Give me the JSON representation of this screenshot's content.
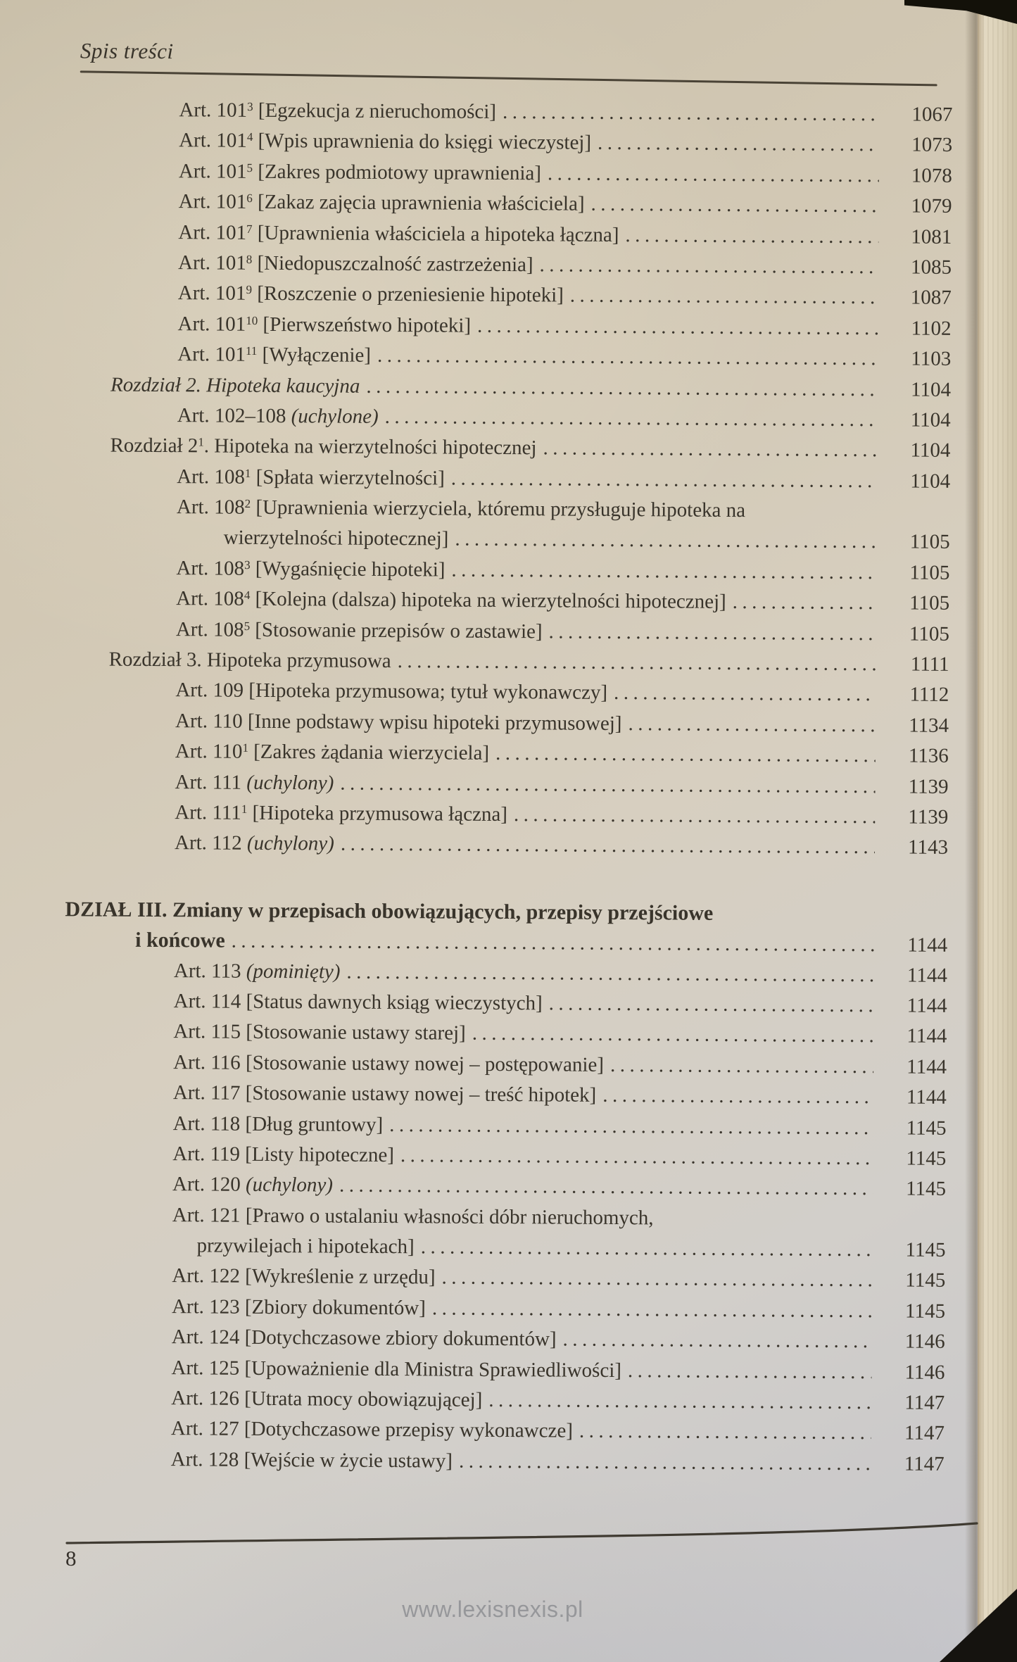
{
  "header": {
    "title": "Spis treści"
  },
  "footer": {
    "page_number": "8",
    "website": "www.lexisnexis.pl"
  },
  "colors": {
    "paper": "#d2c8b4",
    "ink": "#39342b",
    "edge_paper": "#dbd1b8",
    "backdrop": "#131109",
    "watermark": "#8e8f93"
  },
  "toc": {
    "entries": [
      {
        "kind": "art",
        "label": "Art. 101",
        "sup": "3",
        "runs": [
          {
            "t": "[Egzekucja z nieruchomości]"
          }
        ],
        "page": "1067"
      },
      {
        "kind": "art",
        "label": "Art. 101",
        "sup": "4",
        "runs": [
          {
            "t": "[Wpis uprawnienia do księgi wieczystej]"
          }
        ],
        "page": "1073"
      },
      {
        "kind": "art",
        "label": "Art. 101",
        "sup": "5",
        "runs": [
          {
            "t": "[Zakres podmiotowy uprawnienia]"
          }
        ],
        "page": "1078"
      },
      {
        "kind": "art",
        "label": "Art. 101",
        "sup": "6",
        "runs": [
          {
            "t": "[Zakaz zajęcia uprawnienia właściciela]"
          }
        ],
        "page": "1079"
      },
      {
        "kind": "art",
        "label": "Art. 101",
        "sup": "7",
        "runs": [
          {
            "t": "[Uprawnienia właściciela a hipoteka łączna]"
          }
        ],
        "page": "1081"
      },
      {
        "kind": "art",
        "label": "Art. 101",
        "sup": "8",
        "runs": [
          {
            "t": "[Niedopuszczalność zastrzeżenia]"
          }
        ],
        "page": "1085"
      },
      {
        "kind": "art",
        "label": "Art. 101",
        "sup": "9",
        "runs": [
          {
            "t": "[Roszczenie o przeniesienie hipoteki]"
          }
        ],
        "page": "1087"
      },
      {
        "kind": "art",
        "label": "Art. 101",
        "sup": "10",
        "runs": [
          {
            "t": "[Pierwszeństwo hipoteki]"
          }
        ],
        "page": "1102"
      },
      {
        "kind": "art",
        "label": "Art. 101",
        "sup": "11",
        "runs": [
          {
            "t": "[Wyłączenie]"
          }
        ],
        "page": "1103"
      },
      {
        "kind": "chapter",
        "label": "Rozdział 2.",
        "italicLabel": true,
        "runs": [
          {
            "t": "Hipoteka kaucyjna",
            "i": true
          }
        ],
        "page": "1104"
      },
      {
        "kind": "art",
        "label": "Art. 102–108",
        "runs": [
          {
            "t": "(uchylone)",
            "i": true
          }
        ],
        "page": "1104"
      },
      {
        "kind": "chapter",
        "label": "Rozdział 2",
        "sup": "1",
        "post": ".",
        "runs": [
          {
            "t": "Hipoteka na wierzytelności hipotecznej"
          }
        ],
        "page": "1104"
      },
      {
        "kind": "art",
        "label": "Art. 108",
        "sup": "1",
        "runs": [
          {
            "t": "[Spłata wierzytelności]"
          }
        ],
        "page": "1104"
      },
      {
        "kind": "art",
        "label": "Art. 108",
        "sup": "2",
        "runs": [
          {
            "t": "[Uprawnienia wierzyciela, któremu przysługuje hipoteka na"
          }
        ],
        "page": null
      },
      {
        "kind": "cont-art",
        "runs": [
          {
            "t": "wierzytelności hipotecznej]"
          }
        ],
        "page": "1105"
      },
      {
        "kind": "art",
        "label": "Art. 108",
        "sup": "3",
        "runs": [
          {
            "t": "[Wygaśnięcie hipoteki]"
          }
        ],
        "page": "1105"
      },
      {
        "kind": "art",
        "label": "Art. 108",
        "sup": "4",
        "runs": [
          {
            "t": "[Kolejna (dalsza) hipoteka na wierzytelności hipotecznej]"
          }
        ],
        "page": "1105"
      },
      {
        "kind": "art",
        "label": "Art. 108",
        "sup": "5",
        "runs": [
          {
            "t": "[Stosowanie przepisów o zastawie]"
          }
        ],
        "page": "1105"
      },
      {
        "kind": "chapter",
        "label": "Rozdział 3.",
        "runs": [
          {
            "t": "Hipoteka przymusowa"
          }
        ],
        "page": "1111"
      },
      {
        "kind": "art",
        "label": "Art. 109",
        "runs": [
          {
            "t": "[Hipoteka przymusowa; tytuł wykonawczy]"
          }
        ],
        "page": "1112"
      },
      {
        "kind": "art",
        "label": "Art. 110",
        "runs": [
          {
            "t": "[Inne podstawy wpisu hipoteki przymusowej]"
          }
        ],
        "page": "1134"
      },
      {
        "kind": "art",
        "label": "Art. 110",
        "sup": "1",
        "runs": [
          {
            "t": "[Zakres żądania wierzyciela]"
          }
        ],
        "page": "1136"
      },
      {
        "kind": "art",
        "label": "Art. 111",
        "runs": [
          {
            "t": "(uchylony)",
            "i": true
          }
        ],
        "page": "1139"
      },
      {
        "kind": "art",
        "label": "Art. 111",
        "sup": "1",
        "runs": [
          {
            "t": "[Hipoteka przymusowa łączna]"
          }
        ],
        "page": "1139"
      },
      {
        "kind": "art",
        "label": "Art. 112",
        "runs": [
          {
            "t": "(uchylony)",
            "i": true
          }
        ],
        "page": "1143"
      },
      {
        "kind": "division",
        "gap_before": true,
        "label": "DZIAŁ III.",
        "runs": [
          {
            "t": "Zmiany w przepisach obowiązujących, przepisy przejściowe"
          }
        ],
        "page": null
      },
      {
        "kind": "cont-division",
        "runs": [
          {
            "t": "i końcowe"
          }
        ],
        "page": "1144"
      },
      {
        "kind": "art",
        "label": "Art. 113",
        "runs": [
          {
            "t": "(pominięty)",
            "i": true
          }
        ],
        "page": "1144"
      },
      {
        "kind": "art",
        "label": "Art. 114",
        "runs": [
          {
            "t": "[Status dawnych ksiąg wieczystych]"
          }
        ],
        "page": "1144"
      },
      {
        "kind": "art",
        "label": "Art. 115",
        "runs": [
          {
            "t": "[Stosowanie ustawy starej]"
          }
        ],
        "page": "1144"
      },
      {
        "kind": "art",
        "label": "Art. 116",
        "runs": [
          {
            "t": "[Stosowanie ustawy nowej – postępowanie]"
          }
        ],
        "page": "1144"
      },
      {
        "kind": "art",
        "label": "Art. 117",
        "runs": [
          {
            "t": "[Stosowanie ustawy nowej – treść hipotek]"
          }
        ],
        "page": "1144"
      },
      {
        "kind": "art",
        "label": "Art. 118",
        "runs": [
          {
            "t": "[Dług gruntowy]"
          }
        ],
        "page": "1145"
      },
      {
        "kind": "art",
        "label": "Art. 119",
        "runs": [
          {
            "t": "[Listy hipoteczne]"
          }
        ],
        "page": "1145"
      },
      {
        "kind": "art",
        "label": "Art. 120",
        "runs": [
          {
            "t": "(uchylony)",
            "i": true
          }
        ],
        "page": "1145"
      },
      {
        "kind": "art",
        "label": "Art. 121",
        "runs": [
          {
            "t": "[Prawo o ustalaniu własności dóbr nieruchomych,"
          }
        ],
        "page": null
      },
      {
        "kind": "cont-art2",
        "runs": [
          {
            "t": "przywilejach i hipotekach]"
          }
        ],
        "page": "1145"
      },
      {
        "kind": "art",
        "label": "Art. 122",
        "runs": [
          {
            "t": "[Wykreślenie z urzędu]"
          }
        ],
        "page": "1145"
      },
      {
        "kind": "art",
        "label": "Art. 123",
        "runs": [
          {
            "t": "[Zbiory dokumentów]"
          }
        ],
        "page": "1145"
      },
      {
        "kind": "art",
        "label": "Art. 124",
        "runs": [
          {
            "t": "[Dotychczasowe zbiory dokumentów]"
          }
        ],
        "page": "1146"
      },
      {
        "kind": "art",
        "label": "Art. 125",
        "runs": [
          {
            "t": "[Upoważnienie dla Ministra Sprawiedliwości]"
          }
        ],
        "page": "1146"
      },
      {
        "kind": "art",
        "label": "Art. 126",
        "runs": [
          {
            "t": "[Utrata mocy obowiązującej]"
          }
        ],
        "page": "1147"
      },
      {
        "kind": "art",
        "label": "Art. 127",
        "runs": [
          {
            "t": "[Dotychczasowe przepisy wykonawcze]"
          }
        ],
        "page": "1147"
      },
      {
        "kind": "art",
        "label": "Art. 128",
        "runs": [
          {
            "t": "[Wejście w życie ustawy]"
          }
        ],
        "page": "1147"
      }
    ]
  }
}
